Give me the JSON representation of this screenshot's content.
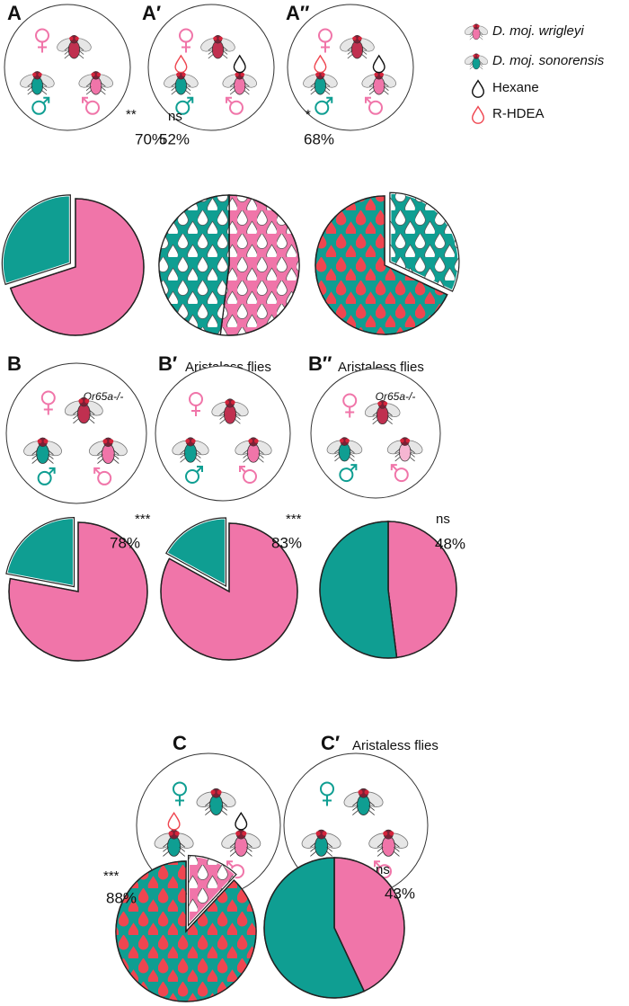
{
  "legend": [
    {
      "name": "D. moj. wrigleyi",
      "color": "#f075a9",
      "italic": true
    },
    {
      "name": "D. moj. sonorensis",
      "color": "#0f9e92",
      "italic": true
    },
    {
      "name": "Hexane",
      "color": "#111111",
      "italic": false
    },
    {
      "name": "R-HDEA",
      "color": "#ef4650",
      "italic": false
    }
  ],
  "chart_data": [
    {
      "type": "pie",
      "panel": "A",
      "significance": "**",
      "values": [
        70,
        30
      ],
      "value_labels": [
        "70%",
        null
      ],
      "colors": [
        "#f075a9",
        "#0f9e92"
      ],
      "drops": [
        null,
        null
      ],
      "explode": 1
    },
    {
      "type": "pie",
      "panel": "A′",
      "significance": "ns",
      "values": [
        52,
        48
      ],
      "value_labels": [
        "52%",
        null
      ],
      "colors": [
        "#f075a9",
        "#0f9e92"
      ],
      "drops": [
        "#ffffff",
        "#ffffff"
      ],
      "explode": null
    },
    {
      "type": "pie",
      "panel": "A″",
      "significance": "*",
      "values": [
        32,
        68
      ],
      "value_labels": [
        null,
        "68%"
      ],
      "colors": [
        "#0f9e92",
        "#0f9e92"
      ],
      "drops": [
        "#ffffff",
        "#ef4650"
      ],
      "explode": 0
    },
    {
      "type": "pie",
      "panel": "B",
      "genotype": "Or65a-/-",
      "significance": "***",
      "values": [
        78,
        22
      ],
      "value_labels": [
        "78%",
        null
      ],
      "colors": [
        "#f075a9",
        "#0f9e92"
      ],
      "drops": [
        null,
        null
      ],
      "explode": 1
    },
    {
      "type": "pie",
      "panel": "B′",
      "subtitle": "Aristaless flies",
      "significance": "***",
      "values": [
        83,
        17
      ],
      "value_labels": [
        "83%",
        null
      ],
      "colors": [
        "#f075a9",
        "#0f9e92"
      ],
      "drops": [
        null,
        null
      ],
      "explode": 1
    },
    {
      "type": "pie",
      "panel": "B″",
      "subtitle": "Aristaless flies",
      "genotype": "Or65a-/-",
      "significance": "ns",
      "values": [
        48,
        52
      ],
      "value_labels": [
        "48%",
        null
      ],
      "colors": [
        "#f075a9",
        "#0f9e92"
      ],
      "drops": [
        null,
        null
      ],
      "explode": null
    },
    {
      "type": "pie",
      "panel": "C",
      "significance": "***",
      "values": [
        12,
        88
      ],
      "value_labels": [
        null,
        "88%"
      ],
      "colors": [
        "#f075a9",
        "#0f9e92"
      ],
      "drops": [
        "#ffffff",
        "#ef4650"
      ],
      "explode": 0
    },
    {
      "type": "pie",
      "panel": "C′",
      "subtitle": "Aristaless flies",
      "significance": "ns",
      "values": [
        43,
        57
      ],
      "value_labels": [
        "43%",
        null
      ],
      "colors": [
        "#f075a9",
        "#0f9e92"
      ],
      "drops": [
        null,
        null
      ],
      "explode": null
    }
  ]
}
